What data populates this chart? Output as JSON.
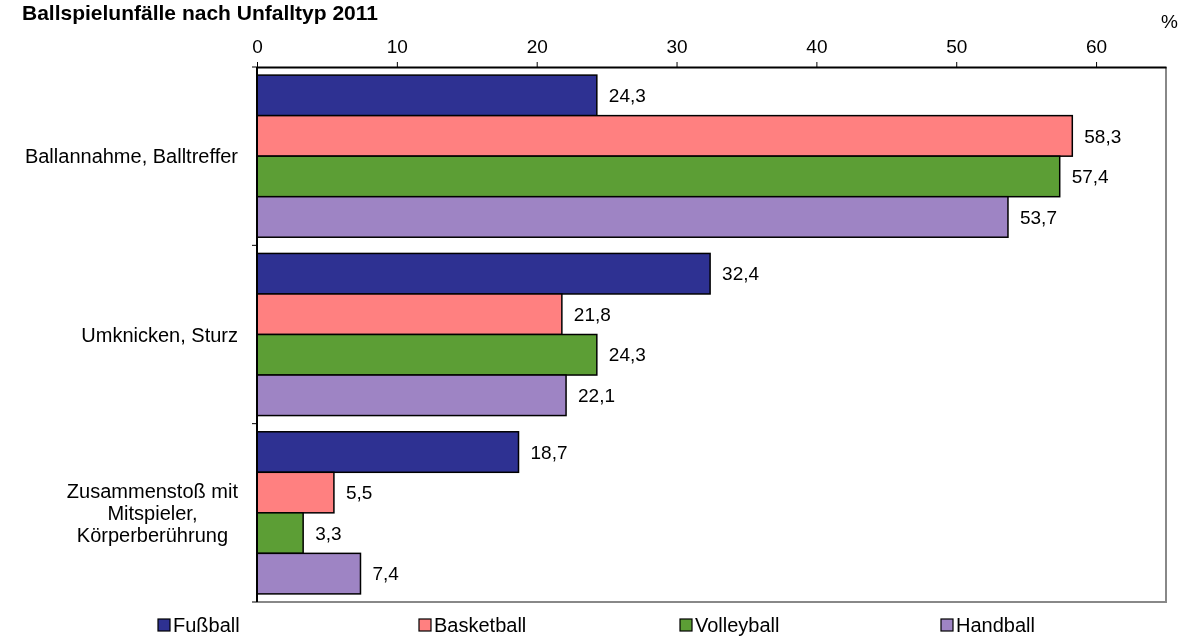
{
  "chart_data": {
    "type": "bar",
    "orientation": "horizontal",
    "title": "Ballspielunfälle nach Unfalltyp 2011",
    "xlabel": "%",
    "categories": [
      "Ballannahme, Balltreffer",
      "Umknicken, Sturz",
      "Zusammenstoß mit Mitspieler, Körperberührung"
    ],
    "series": [
      {
        "name": "Fußball",
        "color": "#2e3192",
        "values": [
          24.3,
          32.4,
          18.7
        ],
        "value_labels": [
          "24,3",
          "32,4",
          "18,7"
        ]
      },
      {
        "name": "Basketball",
        "color": "#ff8080",
        "values": [
          58.3,
          21.8,
          5.5
        ],
        "value_labels": [
          "58,3",
          "21,8",
          "5,5"
        ]
      },
      {
        "name": "Volleyball",
        "color": "#5c9e35",
        "values": [
          57.4,
          24.3,
          3.3
        ],
        "value_labels": [
          "57,4",
          "24,3",
          "3,3"
        ]
      },
      {
        "name": "Handball",
        "color": "#9e84c4",
        "values": [
          53.7,
          22.1,
          7.4
        ],
        "value_labels": [
          "53,7",
          "22,1",
          "7,4"
        ]
      }
    ],
    "xlim": [
      0,
      65
    ],
    "xticks": [
      0,
      10,
      20,
      30,
      40,
      50,
      60
    ],
    "legend": "bottom"
  }
}
